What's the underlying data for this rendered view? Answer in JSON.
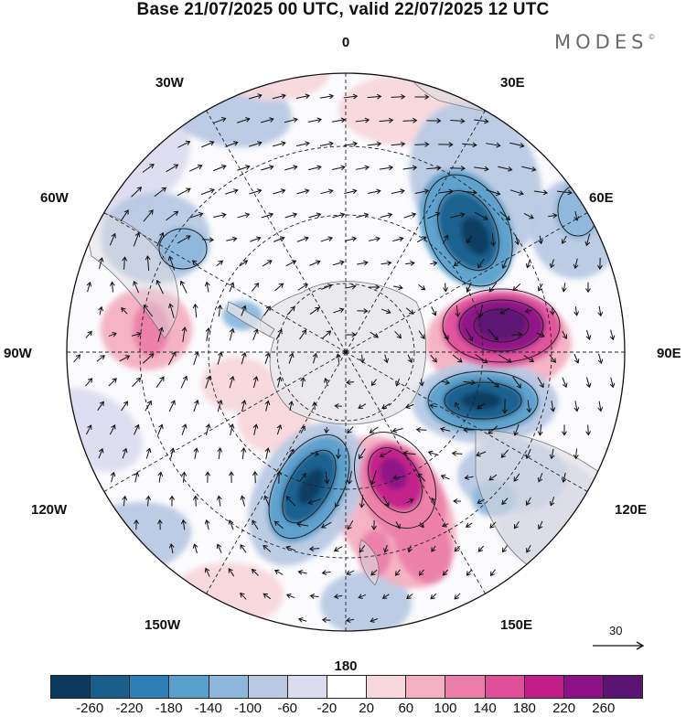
{
  "header": {
    "title": "Base 21/07/2025 00 UTC, valid 22/07/2025 12 UTC",
    "brand": "MODES",
    "brand_mark": "©"
  },
  "map": {
    "projection": "south polar stereographic",
    "longitude_labels": {
      "n": "0",
      "ne30": "30E",
      "ne60": "60E",
      "e": "90E",
      "se120": "120E",
      "se150": "150E",
      "s": "180",
      "sw150": "150W",
      "sw120": "120W",
      "w": "90W",
      "nw60": "60W",
      "nw30": "30W"
    },
    "anomaly_centers": [
      {
        "sign": "positive",
        "value": 260,
        "sector": "between 60E and 90E"
      },
      {
        "sign": "negative",
        "value": -220,
        "sector": "near 45E"
      },
      {
        "sign": "negative",
        "value": -220,
        "sector": "near 100E"
      },
      {
        "sign": "positive",
        "value": 220,
        "sector": "near 160E"
      },
      {
        "sign": "negative",
        "value": -260,
        "sector": "near 155W"
      }
    ]
  },
  "colorbar": {
    "colors": [
      "#0c3a5e",
      "#1a5f8c",
      "#2d7fb6",
      "#5aa0cc",
      "#8db7dc",
      "#b9c9e4",
      "#dcdcef",
      "#ffffff",
      "#f7d7dc",
      "#f3b0c3",
      "#ec7fa9",
      "#e0509a",
      "#c21e89",
      "#8b1386",
      "#5a1472"
    ],
    "tick_labels": [
      "-260",
      "-220",
      "-180",
      "-140",
      "-100",
      "-60",
      "-20",
      "20",
      "60",
      "100",
      "140",
      "180",
      "220",
      "260"
    ]
  },
  "reference_vector": {
    "value": "30"
  }
}
